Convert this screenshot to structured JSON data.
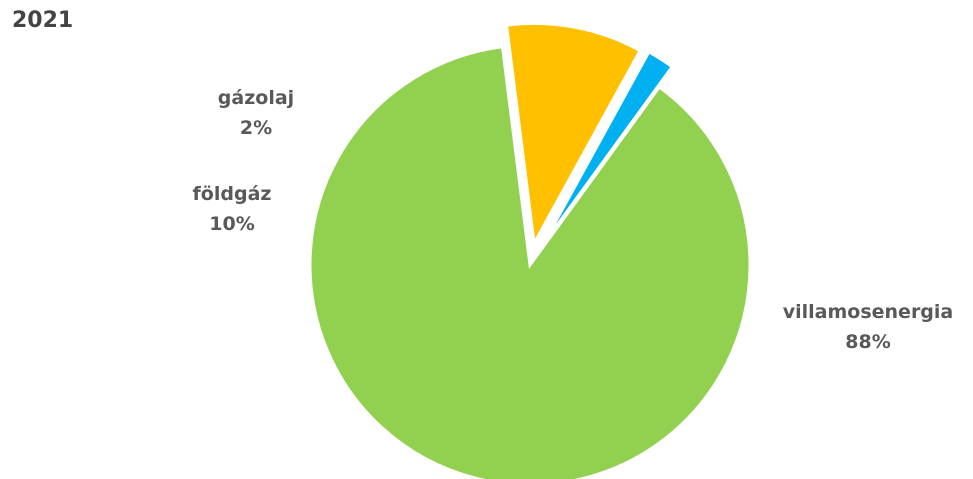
{
  "chart_data": {
    "type": "pie",
    "title": "2021",
    "slices": [
      {
        "name": "villamosenergia",
        "value": 88,
        "value_label": "88%",
        "color": "#92d050"
      },
      {
        "name": "földgáz",
        "value": 10,
        "value_label": "10%",
        "color": "#ffc000"
      },
      {
        "name": "gázolaj",
        "value": 2,
        "value_label": "2%",
        "color": "#00b0f0"
      }
    ],
    "exploded": true,
    "legend": "none",
    "data_labels": "outside"
  }
}
